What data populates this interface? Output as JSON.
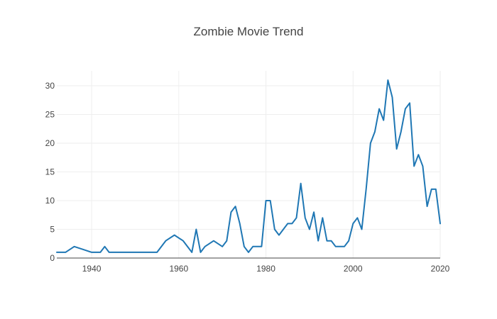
{
  "chart_data": {
    "type": "line",
    "title": "Zombie Movie Trend",
    "xlabel": "",
    "ylabel": "",
    "xlim": [
      1932,
      2020
    ],
    "ylim": [
      0,
      32.6
    ],
    "x_ticks": [
      1940,
      1960,
      1980,
      2000,
      2020
    ],
    "y_ticks": [
      0,
      5,
      10,
      15,
      20,
      25,
      30
    ],
    "grid": true,
    "legend": "none",
    "series": [
      {
        "color": "#1f77b4",
        "x": [
          1932,
          1933,
          1934,
          1936,
          1938,
          1940,
          1941,
          1942,
          1943,
          1944,
          1945,
          1946,
          1950,
          1952,
          1953,
          1955,
          1957,
          1959,
          1961,
          1963,
          1964,
          1965,
          1966,
          1968,
          1970,
          1971,
          1972,
          1973,
          1974,
          1975,
          1976,
          1977,
          1978,
          1979,
          1980,
          1981,
          1982,
          1983,
          1984,
          1985,
          1986,
          1987,
          1988,
          1989,
          1990,
          1991,
          1992,
          1993,
          1994,
          1995,
          1996,
          1997,
          1998,
          1999,
          2000,
          2001,
          2002,
          2003,
          2004,
          2005,
          2006,
          2007,
          2008,
          2009,
          2010,
          2011,
          2012,
          2013,
          2014,
          2015,
          2016,
          2017,
          2018,
          2019,
          2020
        ],
        "y": [
          1,
          1,
          1,
          2,
          1.5,
          1,
          1,
          1,
          2,
          1,
          1,
          1,
          1,
          1,
          1,
          1,
          3,
          4,
          3,
          1,
          5,
          1,
          2,
          3,
          2,
          3,
          8,
          9,
          6,
          2,
          1,
          2,
          2,
          2,
          10,
          10,
          5,
          4,
          5,
          6,
          6,
          7,
          13,
          7,
          5,
          8,
          3,
          7,
          3,
          3,
          2,
          2,
          2,
          3,
          6,
          7,
          5,
          12,
          20,
          22,
          26,
          24,
          31,
          28,
          19,
          22,
          26,
          27,
          16,
          18,
          16,
          9,
          12,
          12,
          6
        ]
      }
    ]
  }
}
